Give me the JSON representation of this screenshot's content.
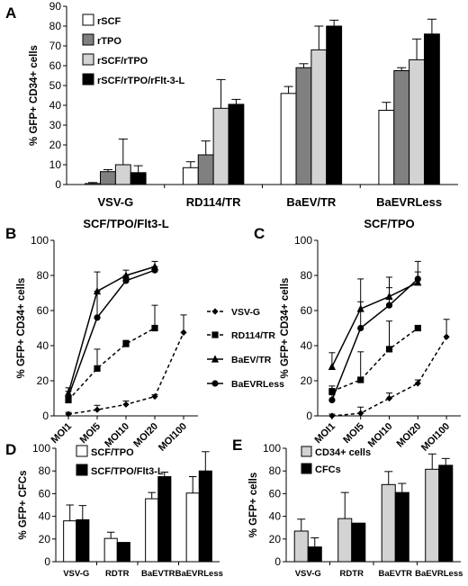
{
  "panels": [
    {
      "id": "A",
      "letter": "A",
      "type": "bar",
      "title": "",
      "ylabel": "% GFP+ CD34+ cells",
      "ylim": [
        0,
        90
      ],
      "yticks": [
        0,
        10,
        20,
        30,
        40,
        50,
        60,
        70,
        80,
        90
      ],
      "categories": [
        "VSV-G",
        "RD114/TR",
        "BaEV/TR",
        "BaEVRLess"
      ],
      "legend_position": "top-left",
      "series": [
        {
          "name": "rSCF",
          "color": "#ffffff",
          "values": [
            0.5,
            8.5,
            46,
            37.5
          ],
          "errors": [
            0.5,
            3,
            3.5,
            4
          ]
        },
        {
          "name": "rTPO",
          "color": "#808080",
          "values": [
            6.5,
            15,
            59,
            57.5
          ],
          "errors": [
            1,
            7,
            2,
            1.5
          ]
        },
        {
          "name": "rSCF/rTPO",
          "color": "#d3d3d3",
          "values": [
            10,
            38.5,
            68,
            63
          ],
          "errors": [
            13,
            14.5,
            12,
            10.5
          ]
        },
        {
          "name": "rSCF/rTPO/rFlt-3-L",
          "color": "#000000",
          "values": [
            6,
            40.5,
            80,
            76
          ],
          "errors": [
            3.5,
            2.5,
            3,
            7.5
          ]
        }
      ]
    },
    {
      "id": "B",
      "letter": "B",
      "type": "line",
      "title": "SCF/TPO/Flt3-L",
      "ylabel": "% GFP+ CD34+ cells",
      "ylim": [
        0,
        100
      ],
      "yticks": [
        0,
        20,
        40,
        60,
        80,
        100
      ],
      "categories": [
        "MOI1",
        "MOI5",
        "MOI10",
        "MOI20",
        "MOI100"
      ],
      "series": [
        {
          "name": "VSV-G",
          "marker": "diamond",
          "dash": true,
          "values": [
            1,
            3.5,
            6.5,
            11,
            47.5
          ],
          "errors": [
            1,
            2.5,
            2,
            1,
            10
          ]
        },
        {
          "name": "RD114/TR",
          "marker": "square",
          "dash": true,
          "values": [
            9,
            27,
            41,
            50,
            null
          ],
          "errors": [
            2,
            11,
            2,
            13,
            null
          ]
        },
        {
          "name": "BaEV/TR",
          "marker": "triangle",
          "dash": false,
          "values": [
            13,
            71,
            80,
            85,
            null
          ],
          "errors": [
            3,
            11,
            3,
            3,
            null
          ]
        },
        {
          "name": "BaEVRLess",
          "marker": "circle",
          "dash": false,
          "values": [
            11,
            56,
            77,
            83,
            null
          ],
          "errors": [
            3,
            15,
            3,
            2,
            null
          ]
        }
      ]
    },
    {
      "id": "C",
      "letter": "C",
      "type": "line",
      "title": "SCF/TPO",
      "ylabel": "% GFP+ CD34+ cells",
      "ylim": [
        0,
        100
      ],
      "yticks": [
        0,
        20,
        40,
        60,
        80,
        100
      ],
      "categories": [
        "MOI1",
        "MOI5",
        "MOI10",
        "MOI20",
        "MOI100"
      ],
      "series": [
        {
          "name": "VSV-G",
          "marker": "diamond",
          "dash": true,
          "values": [
            0,
            1.5,
            10,
            18.5,
            45
          ],
          "errors": [
            1,
            3.5,
            3,
            2,
            10
          ]
        },
        {
          "name": "RD114/TR",
          "marker": "square",
          "dash": true,
          "values": [
            14,
            20.5,
            38,
            50,
            null
          ],
          "errors": [
            3,
            16,
            16,
            0,
            null
          ]
        },
        {
          "name": "BaEV/TR",
          "marker": "triangle",
          "dash": false,
          "values": [
            28,
            61,
            68,
            76,
            null
          ],
          "errors": [
            8,
            17,
            11,
            6,
            null
          ]
        },
        {
          "name": "BaEVRLess",
          "marker": "circle",
          "dash": false,
          "values": [
            9,
            50,
            63,
            78,
            null
          ],
          "errors": [
            3,
            15,
            10,
            10,
            null
          ]
        }
      ]
    },
    {
      "id": "D",
      "letter": "D",
      "type": "bar",
      "title": "",
      "ylabel": "% GFP+ CFCs",
      "ylim": [
        0,
        100
      ],
      "yticks": [
        0,
        20,
        40,
        60,
        80,
        100
      ],
      "categories": [
        "VSV-G",
        "RDTR",
        "BaEVTR",
        "BaEVRLess"
      ],
      "legend_position": "top-left",
      "series": [
        {
          "name": "SCF/TPO",
          "color": "#ffffff",
          "values": [
            36,
            20.5,
            55.5,
            60.5
          ],
          "errors": [
            14,
            5.5,
            5.5,
            14.5
          ]
        },
        {
          "name": "SCF/TPO/Flt3-L",
          "color": "#000000",
          "values": [
            37,
            17,
            75,
            80
          ],
          "errors": [
            12.5,
            0,
            4,
            17
          ]
        }
      ]
    },
    {
      "id": "E",
      "letter": "E",
      "type": "bar",
      "title": "",
      "ylabel": "% GFP+ cells",
      "ylim": [
        0,
        100
      ],
      "yticks": [
        0,
        20,
        40,
        60,
        80,
        100
      ],
      "categories": [
        "VSV-G",
        "RDTR",
        "BaEVTR",
        "BaEVRLess"
      ],
      "legend_position": "top-left",
      "series": [
        {
          "name": "CD34+ cells",
          "color": "#d3d3d3",
          "values": [
            27,
            38,
            68,
            81.5
          ],
          "errors": [
            10.5,
            23,
            11.5,
            13.5
          ]
        },
        {
          "name": "CFCs",
          "color": "#000000",
          "values": [
            13,
            34,
            61,
            85
          ],
          "errors": [
            8,
            0,
            8,
            6
          ]
        }
      ]
    }
  ]
}
